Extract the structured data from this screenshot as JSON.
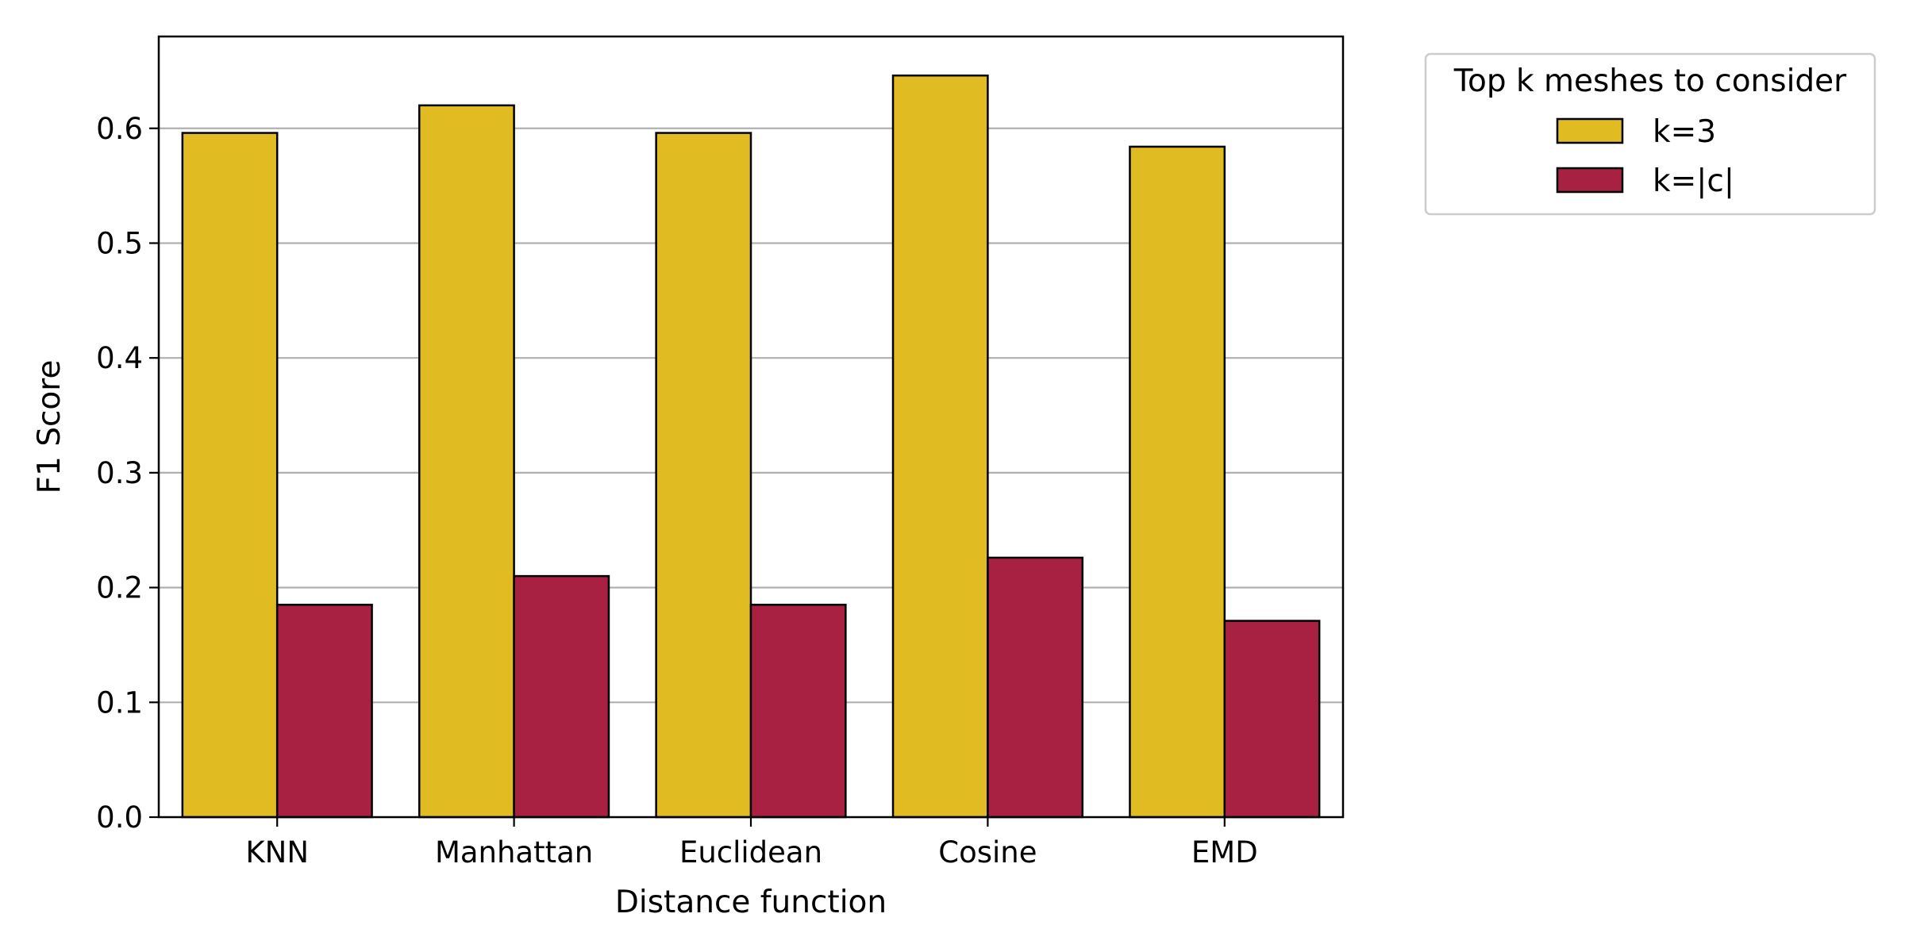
{
  "chart_data": {
    "type": "bar",
    "title": "",
    "xlabel": "Distance function",
    "ylabel": "F1 Score",
    "categories": [
      "KNN",
      "Manhattan",
      "Euclidean",
      "Cosine",
      "EMD"
    ],
    "series": [
      {
        "name": "k=3",
        "color": "#E0BB22",
        "values": [
          0.596,
          0.62,
          0.596,
          0.646,
          0.584
        ]
      },
      {
        "name": "k=|c|",
        "color": "#A82042",
        "values": [
          0.185,
          0.21,
          0.185,
          0.226,
          0.171
        ]
      }
    ],
    "ylim": [
      0,
      0.68
    ],
    "yticks": [
      "0.0",
      "0.1",
      "0.2",
      "0.3",
      "0.4",
      "0.5",
      "0.6"
    ],
    "grid": "horizontal",
    "legend": {
      "title": "Top k meshes to consider",
      "placement": "outside-top-right"
    }
  }
}
